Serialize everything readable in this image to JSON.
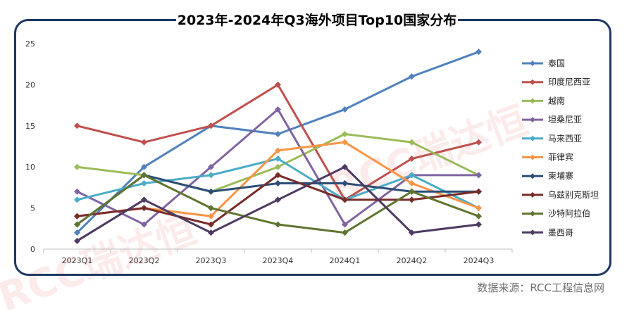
{
  "title": "2023年-2024年Q3海外项目Top10国家分布",
  "source": "数据来源：RCC工程信息网",
  "watermark": "RCC瑞达恒",
  "chart_data": {
    "type": "line",
    "title": "2023年-2024年Q3海外项目Top10国家分布",
    "categories": [
      "2023Q1",
      "2023Q2",
      "2023Q3",
      "2023Q4",
      "2024Q1",
      "2024Q2",
      "2024Q3"
    ],
    "ylim": [
      0,
      25
    ],
    "yticks": [
      0,
      5,
      10,
      15,
      20,
      25
    ],
    "grid": false,
    "legend_position": "right",
    "series": [
      {
        "name": "泰国",
        "color": "#4f81bd",
        "values": [
          2,
          10,
          15,
          14,
          17,
          21,
          24
        ]
      },
      {
        "name": "印度尼西亚",
        "color": "#c0504d",
        "values": [
          15,
          13,
          15,
          20,
          6,
          11,
          13
        ]
      },
      {
        "name": "越南",
        "color": "#9bbb59",
        "values": [
          10,
          9,
          7,
          10,
          14,
          13,
          9
        ]
      },
      {
        "name": "坦桑尼亚",
        "color": "#8064a2",
        "values": [
          7,
          3,
          10,
          17,
          3,
          9,
          9
        ]
      },
      {
        "name": "马来西亚",
        "color": "#4bacc6",
        "values": [
          6,
          8,
          9,
          11,
          6,
          9,
          5
        ]
      },
      {
        "name": "菲律宾",
        "color": "#f79646",
        "values": [
          4,
          5,
          4,
          12,
          13,
          8,
          5
        ]
      },
      {
        "name": "柬埔寨",
        "color": "#2c4d75",
        "values": [
          3,
          9,
          7,
          8,
          8,
          7,
          7
        ]
      },
      {
        "name": "乌兹别克斯坦",
        "color": "#772c2a",
        "values": [
          4,
          5,
          3,
          9,
          6,
          6,
          7
        ]
      },
      {
        "name": "沙特阿拉伯",
        "color": "#5f7530",
        "values": [
          3,
          9,
          5,
          3,
          2,
          7,
          4
        ]
      },
      {
        "name": "墨西哥",
        "color": "#4d3b62",
        "values": [
          1,
          6,
          2,
          6,
          10,
          2,
          3
        ]
      }
    ]
  }
}
